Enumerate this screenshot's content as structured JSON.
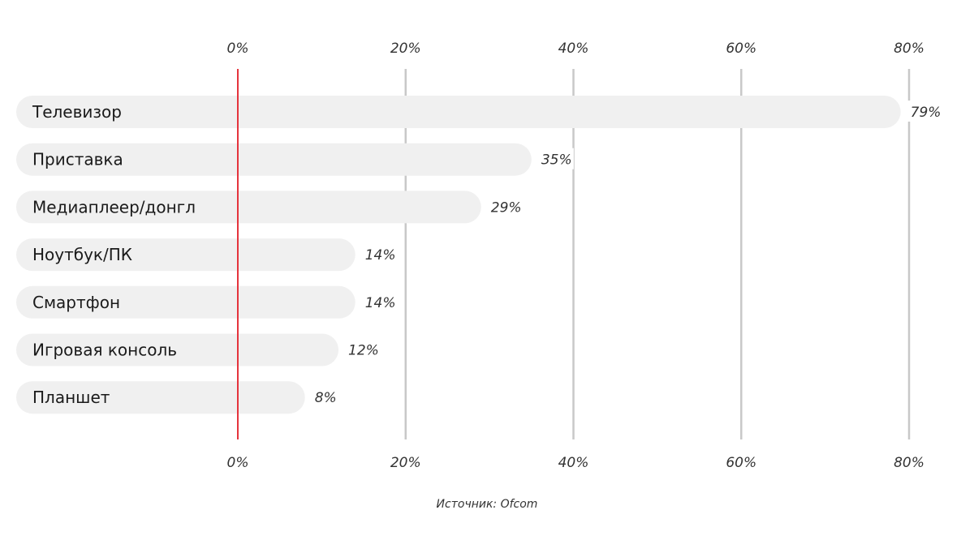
{
  "chart_data": {
    "type": "bar",
    "orientation": "horizontal",
    "categories": [
      "Телевизор",
      "Приставка",
      "Медиаплеер/донгл",
      "Ноутбук/ПК",
      "Смартфон",
      "Игровая консоль",
      "Планшет"
    ],
    "values": [
      79,
      35,
      29,
      14,
      14,
      12,
      8
    ],
    "value_labels": [
      "79%",
      "35%",
      "29%",
      "14%",
      "14%",
      "12%",
      "8%"
    ],
    "xticks": [
      0,
      20,
      40,
      60,
      80
    ],
    "xtick_labels": [
      "0%",
      "20%",
      "40%",
      "60%",
      "80%"
    ],
    "xlim": [
      0,
      80
    ],
    "grid": true,
    "colors": {
      "bar": "#f0f0f0",
      "grid": "#c8c8c8",
      "zero_line": "#e5343d"
    }
  },
  "source": "Источник: Ofcom"
}
